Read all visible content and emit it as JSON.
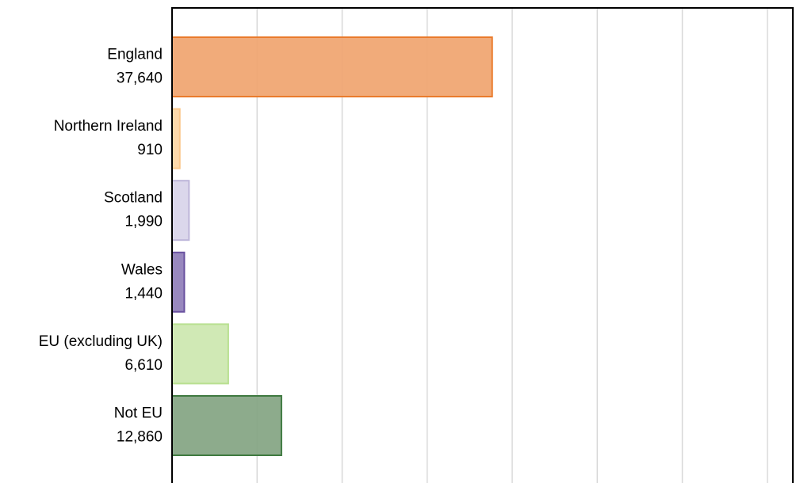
{
  "chart_data": {
    "type": "hbar",
    "categories": [
      "England",
      "Northern Ireland",
      "Scotland",
      "Wales",
      "EU (excluding UK)",
      "Not EU"
    ],
    "values": [
      37640,
      910,
      1990,
      1440,
      6610,
      12860
    ],
    "value_labels": [
      "37,640",
      "910",
      "1,990",
      "1,440",
      "6,610",
      "12,860"
    ],
    "colors": [
      "#f0a773",
      "#fdd7a6",
      "#d9d5ea",
      "#9282bb",
      "#cde8b1",
      "#87a786"
    ],
    "edge_colors": [
      "#ea7b2c",
      "#fbc88c",
      "#bdb6d9",
      "#6a52a0",
      "#b8e090",
      "#3f7a40"
    ],
    "xlim": [
      0,
      73000
    ],
    "xticks": [
      10000,
      20000,
      30000,
      40000,
      50000,
      60000,
      70000
    ],
    "grid": true
  }
}
